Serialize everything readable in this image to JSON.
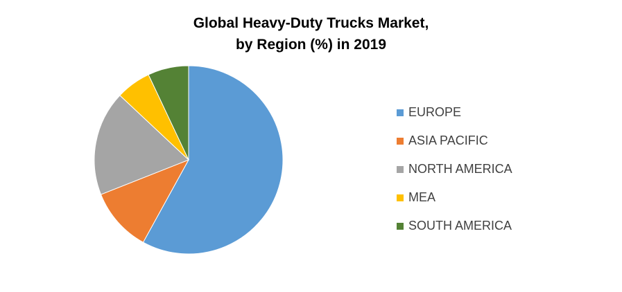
{
  "chart_data": {
    "type": "pie",
    "title_lines": [
      "Global Heavy-Duty Trucks Market,",
      "by Region (%) in 2019"
    ],
    "categories": [
      "EUROPE",
      "ASIA PACIFIC",
      "NORTH AMERICA",
      "MEA",
      "SOUTH AMERICA"
    ],
    "values": [
      58,
      11,
      18,
      6,
      7
    ],
    "colors": [
      "#5B9BD5",
      "#ED7D31",
      "#A5A5A5",
      "#FFC000",
      "#548235"
    ],
    "legend_position": "right"
  }
}
